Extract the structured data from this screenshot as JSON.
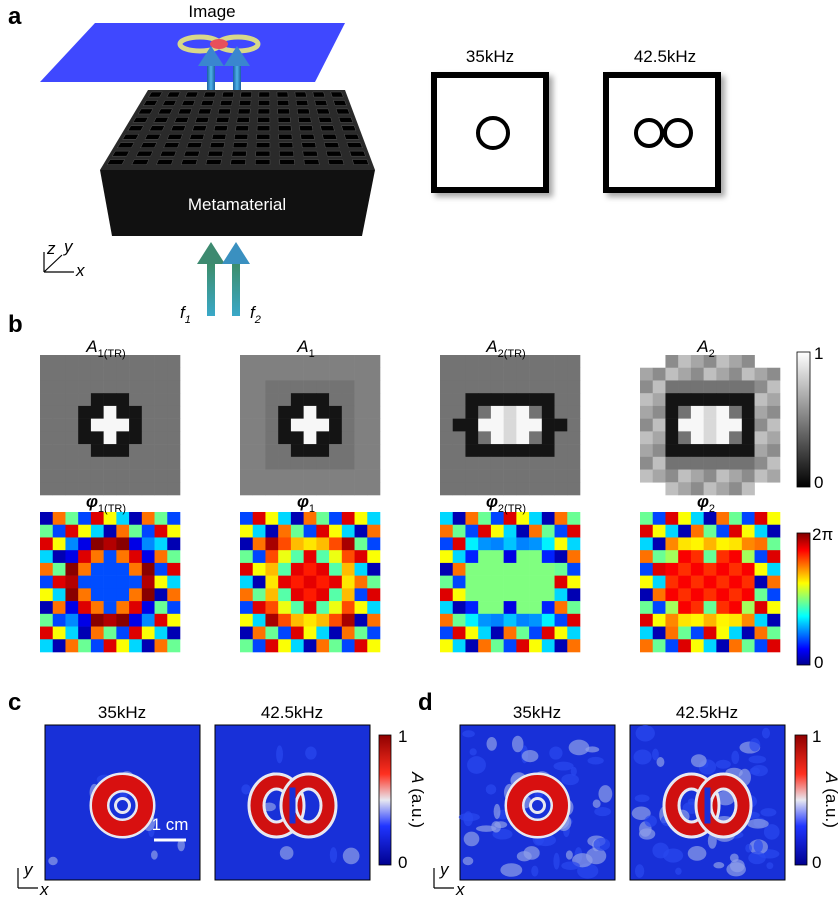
{
  "panel_a": {
    "label": "a",
    "image_label": "Image",
    "box_label": "Metamaterial",
    "axes": {
      "z": "z",
      "y": "y",
      "x": "x"
    },
    "inputs": [
      {
        "symbol": "f",
        "subscript": "1"
      },
      {
        "symbol": "f",
        "subscript": "2"
      }
    ],
    "targets": [
      "35kHz",
      "42.5kHz"
    ]
  },
  "panel_b": {
    "label": "b",
    "amplitude": [
      {
        "symbol": "A",
        "subscript": "1(TR)"
      },
      {
        "symbol": "A",
        "subscript": "1"
      },
      {
        "symbol": "A",
        "subscript": "2(TR)"
      },
      {
        "symbol": "A",
        "subscript": "2"
      }
    ],
    "amplitude_colorbar": {
      "top": "1",
      "bottom": "0"
    },
    "phase": [
      {
        "symbol": "φ",
        "subscript": "1(TR)"
      },
      {
        "symbol": "φ",
        "subscript": "1"
      },
      {
        "symbol": "φ",
        "subscript": "2(TR)"
      },
      {
        "symbol": "φ",
        "subscript": "2"
      }
    ],
    "phase_colorbar": {
      "top": "2π",
      "bottom": "0"
    }
  },
  "panel_c": {
    "label": "c",
    "titles": [
      "35kHz",
      "42.5kHz"
    ],
    "scale_bar": "1 cm",
    "colorbar": {
      "top": "1",
      "bottom": "0",
      "symbol": "A",
      "unit": " (a.u.)"
    },
    "axes": {
      "y": "y",
      "x": "x"
    }
  },
  "panel_d": {
    "label": "d",
    "titles": [
      "35kHz",
      "42.5kHz"
    ],
    "colorbar": {
      "top": "1",
      "bottom": "0",
      "symbol": "A",
      "unit": " (a.u.)"
    },
    "axes": {
      "y": "y",
      "x": "x"
    }
  }
}
